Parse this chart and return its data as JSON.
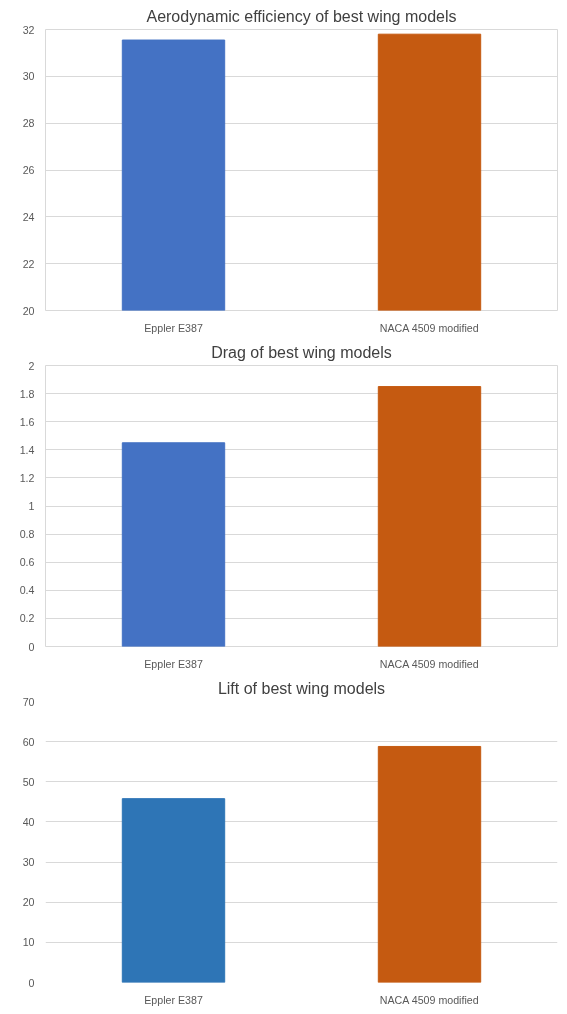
{
  "chart_data": [
    {
      "type": "bar",
      "title": "Aerodynamic efficiency of best wing models",
      "categories": [
        "Eppler E387",
        "NACA 4509 modified"
      ],
      "values": [
        31.55,
        31.8
      ],
      "colors": [
        "#4472c4",
        "#c55a11"
      ],
      "ylim": [
        20,
        32
      ],
      "yticks": [
        20,
        22,
        24,
        26,
        28,
        30,
        32
      ],
      "grid": "y"
    },
    {
      "type": "bar",
      "title": "Drag of best wing models",
      "categories": [
        "Eppler E387",
        "NACA 4509 modified"
      ],
      "values": [
        1.45,
        1.85
      ],
      "colors": [
        "#4472c4",
        "#c55a11"
      ],
      "ylim": [
        0,
        2
      ],
      "yticks": [
        0,
        0.2,
        0.4,
        0.6,
        0.8,
        1,
        1.2,
        1.4,
        1.6,
        1.8,
        2
      ],
      "grid": "y"
    },
    {
      "type": "bar",
      "title": "Lift of best wing models",
      "categories": [
        "Eppler E387",
        "NACA 4509 modified"
      ],
      "values": [
        45.8,
        58.8
      ],
      "colors": [
        "#2e75b6",
        "#c55a11"
      ],
      "ylim": [
        0,
        70
      ],
      "yticks": [
        0,
        10,
        20,
        30,
        40,
        50,
        60,
        70
      ],
      "grid": "y"
    }
  ]
}
